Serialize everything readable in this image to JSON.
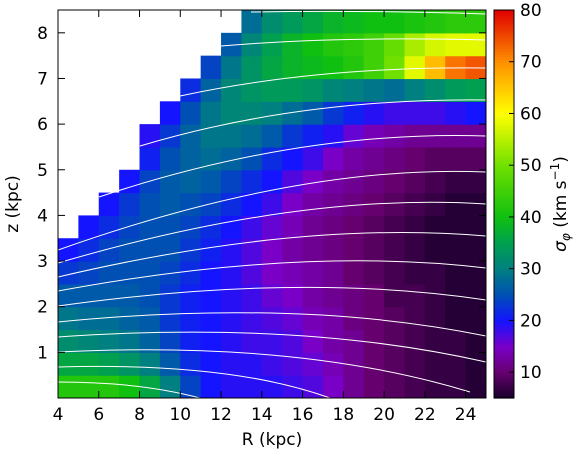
{
  "chart_data": {
    "type": "heatmap",
    "x_label": "R (kpc)",
    "y_label": "z (kpc)",
    "colorbar_label": [
      "σ",
      "φ",
      " (km s",
      "−1",
      ")"
    ],
    "xlim": [
      4,
      25
    ],
    "ylim": [
      0,
      8.5
    ],
    "clim": [
      5,
      80
    ],
    "xticks": [
      4,
      6,
      8,
      10,
      12,
      14,
      16,
      18,
      20,
      22,
      24
    ],
    "yticks": [
      1,
      2,
      3,
      4,
      5,
      6,
      7,
      8
    ],
    "cticks": [
      10,
      20,
      30,
      40,
      50,
      60,
      70,
      80
    ],
    "colorscale": [
      [
        5,
        "#150028"
      ],
      [
        10,
        "#66006e"
      ],
      [
        15,
        "#7a00c8"
      ],
      [
        20,
        "#1414ff"
      ],
      [
        25,
        "#0050b4"
      ],
      [
        30,
        "#008080"
      ],
      [
        35,
        "#00a050"
      ],
      [
        40,
        "#10c010"
      ],
      [
        50,
        "#70e000"
      ],
      [
        60,
        "#ffff00"
      ],
      [
        70,
        "#ff9000"
      ],
      [
        80,
        "#e00000"
      ]
    ],
    "x": [
      4.5,
      5.5,
      6.5,
      7.5,
      8.5,
      9.5,
      10.5,
      11.5,
      12.5,
      13.5,
      14.5,
      15.5,
      16.5,
      17.5,
      18.5,
      19.5,
      20.5,
      21.5,
      22.5,
      23.5,
      24.5
    ],
    "y": [
      0.25,
      0.75,
      1.25,
      1.75,
      2.25,
      2.75,
      3.25,
      3.75,
      4.25,
      4.75,
      5.25,
      5.75,
      6.25,
      6.75,
      7.25,
      7.75,
      8.25
    ],
    "z": [
      [
        42,
        42,
        42,
        40,
        36,
        30,
        24,
        20,
        19,
        19,
        19,
        18,
        17,
        15,
        12,
        10,
        9,
        8,
        7,
        7,
        6
      ],
      [
        36,
        36,
        35,
        33,
        30,
        26,
        22,
        20,
        19,
        19,
        18,
        17,
        16,
        14,
        12,
        10,
        9,
        8,
        7,
        7,
        6
      ],
      [
        32,
        31,
        30,
        29,
        27,
        24,
        21,
        20,
        19,
        18,
        18,
        17,
        15,
        13,
        12,
        10,
        9,
        8,
        7,
        7,
        6
      ],
      [
        29,
        28,
        28,
        27,
        26,
        23,
        21,
        20,
        19,
        18,
        17,
        16,
        14,
        13,
        11,
        10,
        9,
        8,
        7,
        6,
        6
      ],
      [
        26,
        26,
        26,
        26,
        25,
        23,
        21,
        20,
        19,
        18,
        16,
        15,
        13,
        12,
        11,
        10,
        8,
        8,
        7,
        6,
        6
      ],
      [
        23,
        24,
        25,
        25,
        25,
        24,
        22,
        20,
        19,
        17,
        15,
        14,
        13,
        12,
        10,
        9,
        8,
        7,
        7,
        6,
        6
      ],
      [
        20,
        22,
        24,
        25,
        25,
        25,
        23,
        21,
        19,
        17,
        15,
        13,
        12,
        11,
        10,
        9,
        8,
        7,
        6,
        6,
        6
      ],
      [
        null,
        20,
        22,
        24,
        25,
        25,
        24,
        22,
        20,
        18,
        16,
        14,
        12,
        11,
        10,
        9,
        8,
        7,
        6,
        6,
        6
      ],
      [
        null,
        null,
        20,
        23,
        25,
        26,
        25,
        24,
        22,
        20,
        18,
        15,
        13,
        12,
        11,
        10,
        9,
        8,
        7,
        6,
        6
      ],
      [
        null,
        null,
        null,
        20,
        24,
        26,
        27,
        26,
        24,
        22,
        20,
        17,
        15,
        13,
        12,
        11,
        10,
        9,
        8,
        7,
        7
      ],
      [
        null,
        null,
        null,
        null,
        21,
        25,
        27,
        28,
        27,
        25,
        22,
        20,
        18,
        15,
        13,
        12,
        11,
        10,
        9,
        9,
        9
      ],
      [
        null,
        null,
        null,
        null,
        19,
        23,
        27,
        29,
        29,
        28,
        26,
        23,
        21,
        19,
        16,
        14,
        13,
        12,
        12,
        12,
        12
      ],
      [
        null,
        null,
        null,
        null,
        null,
        20,
        25,
        29,
        31,
        31,
        30,
        28,
        26,
        23,
        21,
        19,
        18,
        18,
        18,
        19,
        20
      ],
      [
        null,
        null,
        null,
        null,
        null,
        null,
        22,
        27,
        31,
        33,
        34,
        34,
        33,
        31,
        30,
        29,
        28,
        30,
        32,
        34,
        35
      ],
      [
        null,
        null,
        null,
        null,
        null,
        null,
        null,
        24,
        29,
        33,
        36,
        38,
        39,
        40,
        42,
        45,
        50,
        58,
        66,
        72,
        74
      ],
      [
        null,
        null,
        null,
        null,
        null,
        null,
        null,
        null,
        26,
        31,
        35,
        38,
        40,
        42,
        43,
        45,
        49,
        54,
        57,
        58,
        58
      ],
      [
        null,
        null,
        null,
        null,
        null,
        null,
        null,
        null,
        null,
        28,
        32,
        34,
        36,
        38,
        39,
        40,
        40,
        41,
        42,
        43,
        43
      ]
    ]
  }
}
